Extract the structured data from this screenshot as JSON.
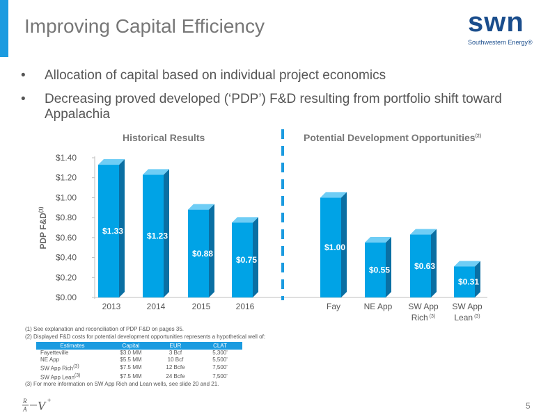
{
  "header": {
    "title": "Improving Capital Efficiency",
    "logo_text": "swn",
    "logo_subtitle": "Southwestern Energy®"
  },
  "bullets": [
    "Allocation of capital based on individual project economics",
    "Decreasing proved developed (‘PDP’) F&D resulting from portfolio shift toward Appalachia"
  ],
  "chart_data": {
    "type": "bar",
    "ylabel": "PDP F&D",
    "ylabel_sup": "(1)",
    "ylim": [
      0,
      1.4
    ],
    "yticks": [
      "$0.00",
      "$0.20",
      "$0.40",
      "$0.60",
      "$0.80",
      "$1.00",
      "$1.20",
      "$1.40"
    ],
    "groups": [
      {
        "label": "Historical Results",
        "label_sup": "",
        "categories": [
          "2013",
          "2014",
          "2015",
          "2016"
        ],
        "values": [
          1.33,
          1.23,
          0.88,
          0.75
        ],
        "labels": [
          "$1.33",
          "$1.23",
          "$0.88",
          "$0.75"
        ]
      },
      {
        "label": "Potential Development Opportunities",
        "label_sup": "(2)",
        "categories": [
          "Fay",
          "NE App",
          "SW App Rich",
          "SW App Lean"
        ],
        "category_sups": [
          "",
          "",
          "(3)",
          "(3)"
        ],
        "values": [
          1.0,
          0.55,
          0.63,
          0.31
        ],
        "labels": [
          "$1.00",
          "$0.55",
          "$0.63",
          "$0.31"
        ]
      }
    ],
    "colors": {
      "bar_front": "#00a3e6",
      "bar_side": "#0a6fa3",
      "bar_top": "#6fcdf5",
      "divider": "#1b9be0"
    }
  },
  "footnotes": {
    "note1": "(1)   See explanation and reconciliation of PDP F&D on pages 35.",
    "note2": "(2)   Displayed F&D costs for potential development opportunities represents a hypothetical well of:",
    "note3": "(3)   For more information on SW App Rich and Lean wells, see slide 20 and 21."
  },
  "estimates_table": {
    "headers": [
      "Estimates",
      "Capital",
      "EUR",
      "CLAT"
    ],
    "rows": [
      {
        "name": "Fayetteville",
        "sup": "",
        "capital": "$3.0 MM",
        "eur": "3 Bcf",
        "clat": "5,300'"
      },
      {
        "name": "NE App",
        "sup": "",
        "capital": "$5.5 MM",
        "eur": "10 Bcf",
        "clat": "5,500'"
      },
      {
        "name": "SW App Rich",
        "sup": "(3)",
        "capital": "$7.5 MM",
        "eur": "12 Bcfe",
        "clat": "7,500'"
      },
      {
        "name": "SW App Lean",
        "sup": "(3)",
        "capital": "$7.5 MM",
        "eur": "24 Bcfe",
        "clat": "7,500'"
      }
    ]
  },
  "page_number": "5"
}
